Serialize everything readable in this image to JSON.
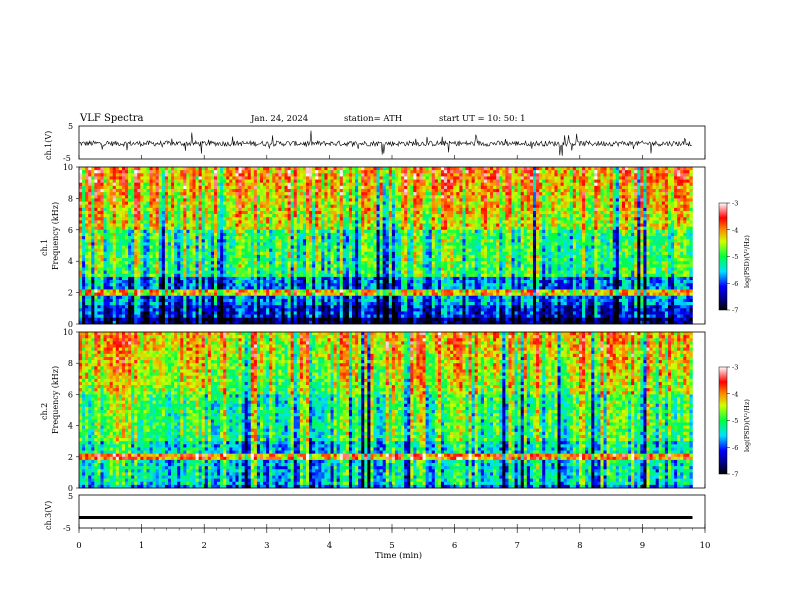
{
  "header": {
    "title": "VLF  Spectra",
    "date": "Jan. 24, 2024",
    "station": "station= ATH",
    "start": "start  UT  =    10: 50: 1"
  },
  "chart_data": [
    {
      "type": "line",
      "title": "",
      "ylabel": "ch.1(V)",
      "ylim": [
        -5,
        5
      ],
      "y_ticks": [
        "5",
        "-5"
      ],
      "xlim": [
        0,
        9.8
      ],
      "series": [
        {
          "values_description_free": true,
          "mean": -0.3,
          "range": [
            -2.0,
            2.0
          ]
        }
      ]
    },
    {
      "type": "heatmap",
      "ylabel": "ch.1\nFrequency (kHz)",
      "ylabel_lines": [
        "ch.1",
        "Frequency (kHz)"
      ],
      "ylim": [
        0,
        10
      ],
      "y_ticks": [
        "0",
        "2",
        "4",
        "6",
        "8",
        "10"
      ],
      "xlim": [
        0,
        9.8
      ],
      "colorbar": {
        "label": "log(PSD)(V²/Hz)",
        "ticks": [
          "-3",
          "-4",
          "-5",
          "-6",
          "-7"
        ],
        "range": [
          -7,
          -3
        ]
      }
    },
    {
      "type": "heatmap",
      "ylabel_lines": [
        "ch.2",
        "Frequency (kHz)"
      ],
      "ylim": [
        0,
        10
      ],
      "y_ticks": [
        "0",
        "2",
        "4",
        "6",
        "8",
        "10"
      ],
      "xlim": [
        0,
        9.8
      ],
      "colorbar": {
        "label": "log(PSD)(V²/Hz)",
        "ticks": [
          "-3",
          "-4",
          "-5",
          "-6",
          "-7"
        ],
        "range": [
          -7,
          -3
        ]
      }
    },
    {
      "type": "line",
      "ylabel": "ch.3(V)",
      "ylim": [
        -5,
        5
      ],
      "y_ticks": [
        "5",
        "-5"
      ],
      "xlim": [
        0,
        9.8
      ],
      "series": [
        {
          "constant": -1.8
        }
      ]
    }
  ],
  "x_axis": {
    "label": "Time (min)",
    "ticks": [
      "0",
      "1",
      "2",
      "3",
      "4",
      "5",
      "6",
      "7",
      "8",
      "9",
      "10"
    ],
    "range": [
      0,
      10
    ]
  },
  "colors": {
    "bg": "#ffffff",
    "ink": "#000000"
  }
}
